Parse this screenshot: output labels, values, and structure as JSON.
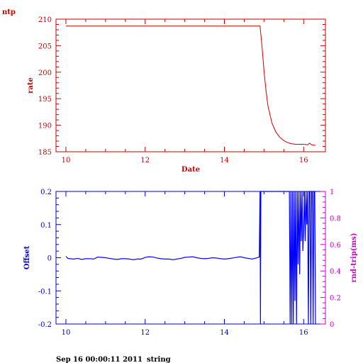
{
  "header": {
    "title": "ntp"
  },
  "footer": {
    "timestamp": "Sep 16 00:00:11 2011",
    "tag": "string"
  },
  "colors": {
    "top": "#cc0000",
    "bottom_axis": "#0000cc",
    "right_axis": "#cc00cc",
    "series_top": "#cc0000",
    "series_offset": "#0000ff"
  },
  "chart_data": [
    {
      "type": "line",
      "title": "",
      "xlabel": "Date",
      "ylabel": "rate",
      "xlim": [
        9.75,
        16.55
      ],
      "ylim": [
        185,
        210
      ],
      "xticks": [
        10,
        12,
        14,
        16
      ],
      "yticks": [
        185,
        190,
        195,
        200,
        205,
        210
      ],
      "grid": false,
      "series": [
        {
          "x": [
            10.0,
            11.0,
            12.0,
            13.0,
            14.0,
            14.9,
            14.95,
            15.0,
            15.05,
            15.1,
            15.2,
            15.3,
            15.4,
            15.5,
            15.6,
            15.7,
            15.8,
            16.0,
            16.1,
            16.15,
            16.2,
            16.3
          ],
          "y": [
            208.7,
            208.7,
            208.7,
            208.7,
            208.7,
            208.7,
            204.8,
            200.2,
            196.5,
            193.6,
            190.4,
            188.7,
            187.7,
            187.1,
            186.7,
            186.5,
            186.4,
            186.4,
            186.3,
            186.6,
            186.3,
            186.2
          ]
        }
      ]
    },
    {
      "type": "line",
      "title": "",
      "xlabel": "",
      "ylabel": "Offset",
      "y2label": "rnd-trip(ms)",
      "xlim": [
        9.75,
        16.55
      ],
      "ylim": [
        -0.2,
        0.2
      ],
      "y2lim": [
        0,
        1
      ],
      "xticks": [
        10,
        12,
        14,
        16
      ],
      "yticks": [
        -0.2,
        -0.1,
        0,
        0.1,
        0.2
      ],
      "y2ticks": [
        0,
        0.2,
        0.4,
        0.6,
        0.8,
        1
      ],
      "grid": false,
      "series": [
        {
          "x": [
            10.0,
            10.05,
            10.1,
            10.2,
            10.3,
            10.4,
            10.5,
            10.6,
            10.7,
            10.8,
            10.9,
            11.0,
            11.1,
            11.2,
            11.3,
            11.4,
            11.5,
            11.6,
            11.7,
            11.8,
            11.9,
            12.0,
            12.1,
            12.2,
            12.3,
            12.4,
            12.5,
            12.6,
            12.7,
            12.8,
            12.9,
            13.0,
            13.1,
            13.2,
            13.3,
            13.4,
            13.5,
            13.6,
            13.7,
            13.8,
            13.9,
            14.0,
            14.1,
            14.2,
            14.3,
            14.4,
            14.5,
            14.6,
            14.7,
            14.8,
            14.88,
            14.9,
            14.91,
            14.92,
            14.95,
            15.0,
            15.1,
            15.2,
            15.3,
            15.4,
            15.5,
            15.6,
            15.64,
            15.66,
            15.68,
            15.7,
            15.72,
            15.74,
            15.76,
            15.78,
            15.8,
            15.82,
            15.84,
            15.86,
            15.88,
            15.9,
            15.92,
            15.94,
            15.96,
            15.98,
            16.0,
            16.02,
            16.04,
            16.06,
            16.08,
            16.1,
            16.12,
            16.14,
            16.16,
            16.18,
            16.2,
            16.22,
            16.24,
            16.26,
            16.28,
            16.3
          ],
          "y": [
            0.004,
            -0.002,
            -0.003,
            -0.004,
            -0.002,
            -0.005,
            -0.003,
            -0.003,
            -0.004,
            0.002,
            0.001,
            0.0,
            -0.002,
            -0.004,
            -0.005,
            -0.003,
            -0.003,
            -0.004,
            -0.006,
            -0.004,
            -0.004,
            0.001,
            0.003,
            0.002,
            -0.001,
            -0.003,
            -0.004,
            -0.004,
            -0.006,
            -0.004,
            -0.002,
            0.001,
            0.002,
            0.003,
            0.0,
            -0.002,
            -0.003,
            -0.002,
            0.0,
            -0.001,
            -0.003,
            -0.004,
            -0.003,
            -0.001,
            0.001,
            0.003,
            0.0,
            -0.002,
            -0.004,
            -0.001,
            0.002,
            0.2,
            -0.2,
            0.2,
            0.2,
            0.2,
            0.2,
            0.2,
            0.2,
            0.2,
            0.2,
            0.2,
            0.2,
            -0.2,
            0.2,
            -0.2,
            0.2,
            -0.2,
            0.2,
            -0.13,
            0.2,
            -0.2,
            0.2,
            -0.02,
            0.2,
            -0.05,
            0.2,
            0.05,
            0.2,
            0.02,
            0.08,
            0.2,
            0.05,
            0.2,
            0.1,
            0.2,
            -0.2,
            0.2,
            0.2,
            -0.2,
            0.2,
            0.2,
            -0.2,
            0.2,
            0.2,
            -0.2
          ]
        }
      ]
    }
  ]
}
